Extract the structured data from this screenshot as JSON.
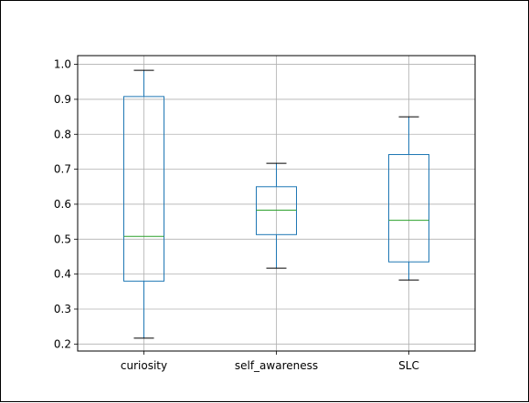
{
  "chart_data": {
    "type": "box",
    "title": "",
    "xlabel": "",
    "ylabel": "",
    "ylim": [
      0.18,
      1.025
    ],
    "yticks": [
      0.2,
      0.3,
      0.4,
      0.5,
      0.6,
      0.7,
      0.8,
      0.9,
      1.0
    ],
    "ytick_labels": [
      "0.2",
      "0.3",
      "0.4",
      "0.5",
      "0.6",
      "0.7",
      "0.8",
      "0.9",
      "1.0"
    ],
    "grid": true,
    "categories": [
      "curiosity",
      "self_awareness",
      "SLC"
    ],
    "boxes": [
      {
        "label": "curiosity",
        "whisker_low": 0.217,
        "q1": 0.38,
        "median": 0.508,
        "q3": 0.908,
        "whisker_high": 0.983
      },
      {
        "label": "self_awareness",
        "whisker_low": 0.417,
        "q1": 0.513,
        "median": 0.583,
        "q3": 0.65,
        "whisker_high": 0.717
      },
      {
        "label": "SLC",
        "whisker_low": 0.383,
        "q1": 0.435,
        "median": 0.554,
        "q3": 0.742,
        "whisker_high": 0.85
      }
    ],
    "colors": {
      "box": "#1f77b4",
      "whisker": "#1f77b4",
      "cap": "#000000",
      "median": "#2ca02c",
      "grid": "#b0b0b0",
      "axes": "#000000"
    }
  }
}
